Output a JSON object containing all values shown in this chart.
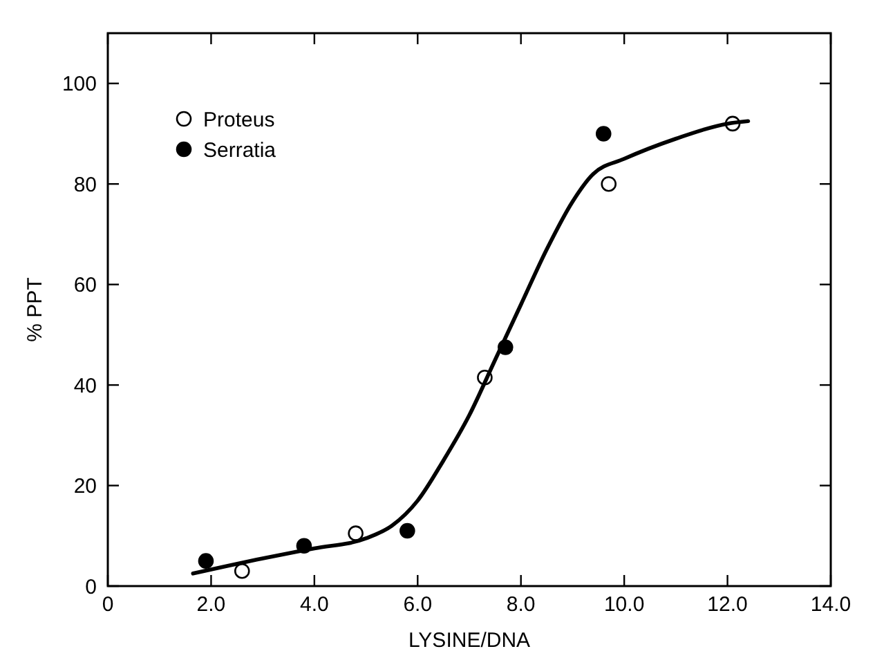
{
  "chart_data": {
    "type": "scatter",
    "xlabel": "LYSINE/DNA",
    "ylabel": "% PPT",
    "xlim": [
      0,
      14
    ],
    "ylim": [
      0,
      110
    ],
    "xticks": [
      0,
      {
        "value": 2,
        "label": "2.0"
      },
      {
        "value": 4,
        "label": "4.0"
      },
      {
        "value": 6,
        "label": "6.0"
      },
      {
        "value": 8,
        "label": "8.0"
      },
      {
        "value": 10,
        "label": "10.0"
      },
      {
        "value": 12,
        "label": "12.0"
      },
      {
        "value": 14,
        "label": "14.0"
      }
    ],
    "yticks": [
      0,
      20,
      40,
      60,
      80,
      100
    ],
    "legend": "top left",
    "marker": "circle",
    "series": [
      {
        "name": "Proteus",
        "color": "#ffffff",
        "x": [
          2.6,
          4.8,
          7.3,
          9.7,
          12.1
        ],
        "values": [
          3,
          10.5,
          41.5,
          80,
          92
        ]
      },
      {
        "name": "Serratia",
        "color": "#000000",
        "x": [
          1.9,
          3.8,
          5.8,
          7.7,
          9.6
        ],
        "values": [
          5,
          8,
          11,
          47.5,
          90
        ]
      },
      {
        "type": "line",
        "color": "#000000",
        "marker": "none",
        "line_style": "solid",
        "x": [
          1.65,
          3,
          4,
          5,
          5.5,
          6,
          6.5,
          7,
          7.5,
          8,
          8.5,
          9,
          9.4,
          10,
          11,
          12,
          12.4
        ],
        "values": [
          2.5,
          5.5,
          7.5,
          9.5,
          12,
          17,
          25,
          34,
          45,
          56,
          67,
          76.5,
          82,
          85,
          89,
          92,
          92.5
        ]
      }
    ]
  }
}
